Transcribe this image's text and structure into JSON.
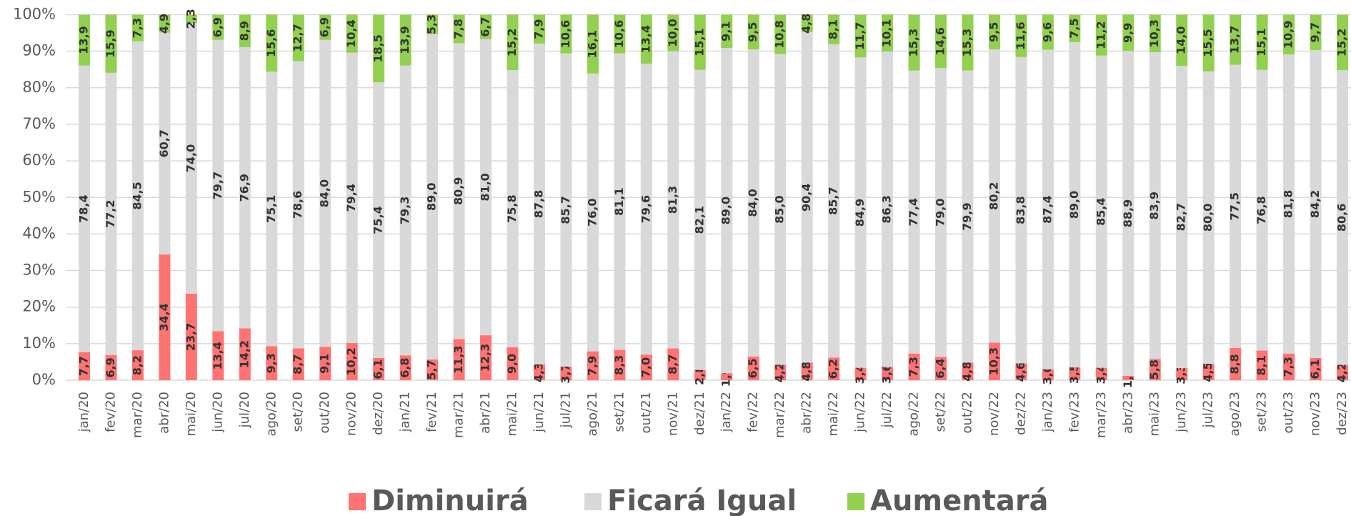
{
  "chart_data": {
    "type": "stacked_bar_100",
    "categories": [
      "jan/20",
      "fev/20",
      "mar/20",
      "abr/20",
      "mai/20",
      "jun/20",
      "jul/20",
      "ago/20",
      "set/20",
      "out/20",
      "nov/20",
      "dez/20",
      "jan/21",
      "fev/21",
      "mar/21",
      "abr/21",
      "mai/21",
      "jun/21",
      "jul/21",
      "ago/21",
      "set/21",
      "out/21",
      "nov/21",
      "dez/21",
      "jan/22",
      "fev/22",
      "mar/22",
      "abr/22",
      "mai/22",
      "jun/22",
      "jul/22",
      "ago/22",
      "set/22",
      "out/22",
      "nov/22",
      "dez/22",
      "jan/23",
      "fev/23",
      "mar/23",
      "abr/23",
      "mai/23",
      "jun/23",
      "jul/23",
      "ago/23",
      "set/23",
      "out/23",
      "nov/23",
      "dez/23"
    ],
    "series": [
      {
        "name": "Diminuirá",
        "color": "#ff7373",
        "values": [
          7.7,
          6.9,
          8.2,
          34.4,
          23.7,
          13.4,
          14.2,
          9.3,
          8.7,
          9.1,
          10.2,
          6.1,
          6.8,
          5.7,
          11.3,
          12.3,
          9.0,
          4.3,
          3.7,
          7.9,
          8.3,
          7.0,
          8.7,
          2.8,
          1.9,
          6.5,
          4.2,
          4.8,
          6.2,
          3.4,
          3.6,
          7.3,
          6.4,
          4.8,
          10.3,
          4.6,
          3.0,
          3.5,
          3.4,
          1.2,
          5.8,
          3.3,
          4.5,
          8.8,
          8.1,
          7.3,
          6.1,
          4.2
        ],
        "value_labels": [
          "7,7",
          "6,9",
          "8,2",
          "34,4",
          "23,7",
          "13,4",
          "14,2",
          "9,3",
          "8,7",
          "9,1",
          "10,2",
          "6,1",
          "6,8",
          "5,7",
          "11,3",
          "12,3",
          "9,0",
          "4,3",
          "3,7",
          "7,9",
          "8,3",
          "7,0",
          "8,7",
          "2,8",
          "1,9",
          "6,5",
          "4,2",
          "4,8",
          "6,2",
          "3,4",
          "3,6",
          "7,3",
          "6,4",
          "4,8",
          "10,3",
          "4,6",
          "3,0",
          "3,5",
          "3,4",
          "1,2",
          "5,8",
          "3,3",
          "4,5",
          "8,8",
          "8,1",
          "7,3",
          "6,1",
          "4,2"
        ]
      },
      {
        "name": "Ficará Igual",
        "color": "#d9d9d9",
        "values": [
          78.4,
          77.2,
          84.5,
          60.7,
          74.0,
          79.7,
          76.9,
          75.1,
          78.6,
          84.0,
          79.4,
          75.4,
          79.3,
          89.0,
          80.9,
          81.0,
          75.8,
          87.8,
          85.7,
          76.0,
          81.1,
          79.6,
          81.3,
          82.1,
          89.0,
          84.0,
          85.0,
          90.4,
          85.7,
          84.9,
          86.3,
          77.4,
          79.0,
          79.9,
          80.2,
          83.8,
          87.4,
          89.0,
          85.4,
          88.9,
          83.9,
          82.7,
          80.0,
          77.5,
          76.8,
          81.8,
          84.2,
          80.6
        ],
        "value_labels": [
          "78,4",
          "77,2",
          "84,5",
          "60,7",
          "74,0",
          "79,7",
          "76,9",
          "75,1",
          "78,6",
          "84,0",
          "79,4",
          "75,4",
          "79,3",
          "89,0",
          "80,9",
          "81,0",
          "75,8",
          "87,8",
          "85,7",
          "76,0",
          "81,1",
          "79,6",
          "81,3",
          "82,1",
          "89,0",
          "84,0",
          "85,0",
          "90,4",
          "85,7",
          "84,9",
          "86,3",
          "77,4",
          "79,0",
          "79,9",
          "80,2",
          "83,8",
          "87,4",
          "89,0",
          "85,4",
          "88,9",
          "83,9",
          "82,7",
          "80,0",
          "77,5",
          "76,8",
          "81,8",
          "84,2",
          "80,6"
        ]
      },
      {
        "name": "Aumentará",
        "color": "#92d050",
        "values": [
          13.9,
          15.9,
          7.3,
          4.9,
          2.3,
          6.9,
          8.9,
          15.6,
          12.7,
          6.9,
          10.4,
          18.5,
          13.9,
          5.3,
          7.8,
          6.7,
          15.2,
          7.9,
          10.6,
          16.1,
          10.6,
          13.4,
          10.0,
          15.1,
          9.1,
          9.5,
          10.8,
          4.8,
          8.1,
          11.7,
          10.1,
          15.3,
          14.6,
          15.3,
          9.5,
          11.6,
          9.6,
          7.5,
          11.2,
          9.9,
          10.3,
          14.0,
          15.5,
          13.7,
          15.1,
          10.9,
          9.7,
          15.2
        ],
        "value_labels": [
          "13,9",
          "15,9",
          "7,3",
          "4,9",
          "2,3",
          "6,9",
          "8,9",
          "15,6",
          "12,7",
          "6,9",
          "10,4",
          "18,5",
          "13,9",
          "5,3",
          "7,8",
          "6,7",
          "15,2",
          "7,9",
          "10,6",
          "16,1",
          "10,6",
          "13,4",
          "10,0",
          "15,1",
          "9,1",
          "9,5",
          "10,8",
          "4,8",
          "8,1",
          "11,7",
          "10,1",
          "15,3",
          "14,6",
          "15,3",
          "9,5",
          "11,6",
          "9,6",
          "7,5",
          "11,2",
          "9,9",
          "10,3",
          "14,0",
          "15,5",
          "13,7",
          "15,1",
          "10,9",
          "9,7",
          "15,2"
        ]
      }
    ],
    "ylim": [
      0,
      100
    ],
    "yticks": [
      {
        "value": 0,
        "label": "0%"
      },
      {
        "value": 10,
        "label": "10%"
      },
      {
        "value": 20,
        "label": "20%"
      },
      {
        "value": 30,
        "label": "30%"
      },
      {
        "value": 40,
        "label": "40%"
      },
      {
        "value": 50,
        "label": "50%"
      },
      {
        "value": 60,
        "label": "60%"
      },
      {
        "value": 70,
        "label": "70%"
      },
      {
        "value": 80,
        "label": "80%"
      },
      {
        "value": 90,
        "label": "90%"
      },
      {
        "value": 100,
        "label": "100%"
      }
    ],
    "grid": true,
    "legend": "bottom"
  }
}
